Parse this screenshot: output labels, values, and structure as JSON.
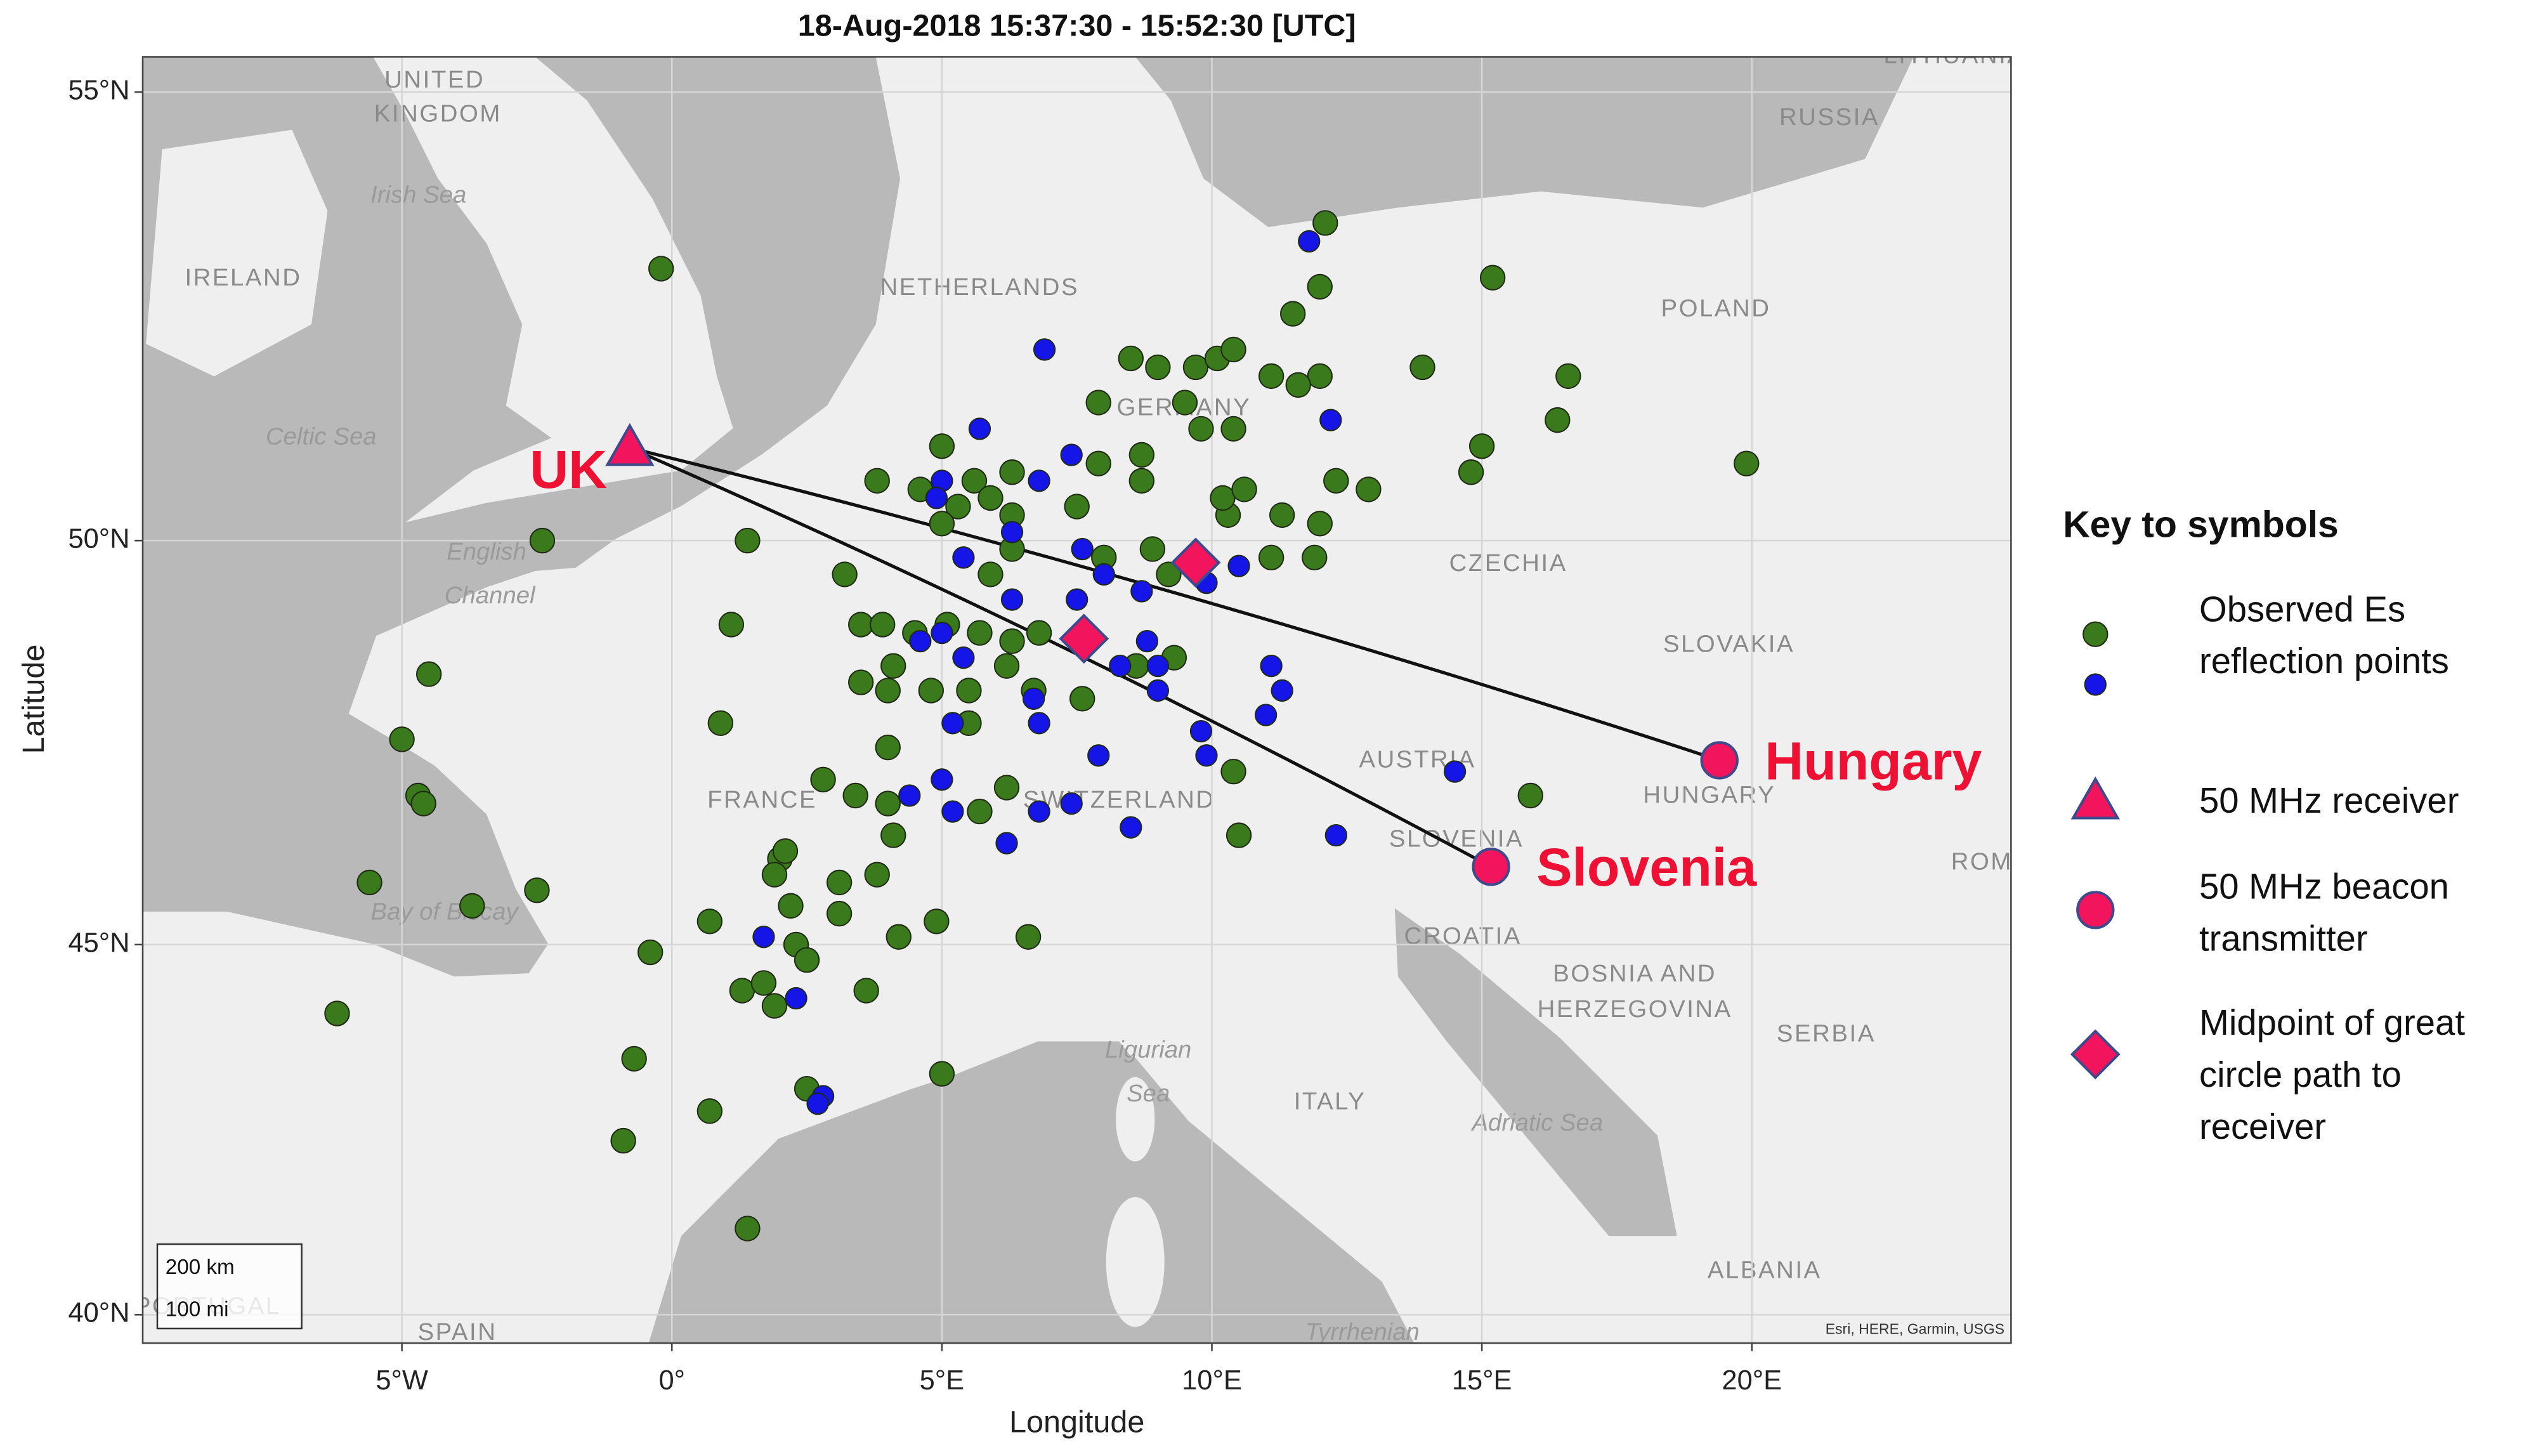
{
  "chart_data": {
    "type": "scatter",
    "title": "18-Aug-2018 15:37:30 - 15:52:30 [UTC]",
    "x_label": "Longitude",
    "y_label": "Latitude",
    "yscale": "mercator",
    "grid": true,
    "xlim": [
      -9.8,
      24.8
    ],
    "ylim": [
      39.6,
      55.37
    ],
    "xticks": [
      {
        "value": -5,
        "label": "5°W"
      },
      {
        "value": 0,
        "label": "0°"
      },
      {
        "value": 5,
        "label": "5°E"
      },
      {
        "value": 10,
        "label": "10°E"
      },
      {
        "value": 15,
        "label": "15°E"
      },
      {
        "value": 20,
        "label": "20°E"
      }
    ],
    "yticks": [
      {
        "value": 40,
        "label": "40°N"
      },
      {
        "value": 45,
        "label": "45°N"
      },
      {
        "value": 50,
        "label": "50°N"
      },
      {
        "value": 55,
        "label": "55°N"
      }
    ],
    "legend_title": "Key to symbols",
    "legend_position": "right",
    "series": [
      {
        "name": "Observed Es reflection points",
        "color": "#3b7a1c",
        "marker": "circle",
        "x": [
          -0.2,
          12.1,
          15.2,
          11.5,
          12.0,
          13.9,
          16.6,
          16.4,
          19.9,
          15.0,
          14.8,
          8.5,
          9.0,
          9.7,
          10.1,
          10.4,
          11.1,
          12.0,
          11.6,
          9.5,
          10.4,
          9.8,
          7.9,
          8.7,
          8.7,
          7.9,
          5.0,
          4.6,
          3.8,
          5.6,
          6.3,
          5.9,
          6.3,
          7.5,
          5.3,
          5.0,
          1.4,
          -2.4,
          3.2,
          5.9,
          6.3,
          8.0,
          8.9,
          9.2,
          10.3,
          10.2,
          10.6,
          11.3,
          12.0,
          12.3,
          12.9,
          11.9,
          11.1,
          1.1,
          3.5,
          3.9,
          4.5,
          5.1,
          5.7,
          6.3,
          6.8,
          4.1,
          3.5,
          4.0,
          4.8,
          5.5,
          6.2,
          6.7,
          7.6,
          5.5,
          9.3,
          8.6,
          0.9,
          -4.5,
          -5.0,
          -4.7,
          -4.6,
          4.0,
          2.8,
          3.4,
          4.0,
          4.1,
          6.2,
          5.7,
          10.4,
          10.5,
          15.9,
          -5.6,
          -3.7,
          -2.5,
          0.7,
          3.1,
          3.8,
          3.1,
          2.0,
          2.1,
          1.9,
          2.2,
          2.3,
          2.5,
          4.2,
          4.9,
          6.6,
          -0.4,
          1.3,
          1.7,
          1.9,
          3.6,
          -6.2,
          -0.7,
          0.7,
          2.5,
          5.0,
          -0.9,
          1.4
        ],
        "values": [
          53.1,
          53.6,
          53.0,
          52.6,
          52.9,
          52.0,
          51.9,
          51.4,
          50.9,
          51.1,
          50.8,
          52.1,
          52.0,
          52.0,
          52.1,
          52.2,
          51.9,
          51.9,
          51.8,
          51.6,
          51.3,
          51.3,
          51.6,
          51.0,
          50.7,
          50.9,
          51.1,
          50.6,
          50.7,
          50.7,
          50.8,
          50.5,
          50.3,
          50.4,
          50.4,
          50.2,
          50.0,
          50.0,
          49.6,
          49.6,
          49.9,
          49.8,
          49.9,
          49.6,
          50.3,
          50.5,
          50.6,
          50.3,
          50.2,
          50.7,
          50.6,
          49.8,
          49.8,
          49.0,
          49.0,
          49.0,
          48.9,
          49.0,
          48.9,
          48.8,
          48.9,
          48.5,
          48.3,
          48.2,
          48.2,
          48.2,
          48.5,
          48.2,
          48.1,
          47.8,
          48.6,
          48.5,
          47.8,
          48.4,
          47.6,
          46.9,
          46.8,
          47.5,
          47.1,
          46.9,
          46.8,
          46.4,
          47.0,
          46.7,
          47.2,
          46.4,
          46.9,
          45.8,
          45.5,
          45.7,
          45.3,
          45.8,
          45.9,
          45.4,
          46.1,
          46.2,
          45.9,
          45.5,
          45.0,
          44.8,
          45.1,
          45.3,
          45.1,
          44.9,
          44.4,
          44.5,
          44.2,
          44.4,
          44.1,
          43.5,
          42.8,
          43.1,
          43.3,
          42.4,
          41.2
        ]
      },
      {
        "color": "#1515e8",
        "marker": "circle",
        "x": [
          11.8,
          6.9,
          5.7,
          7.4,
          12.2,
          5.0,
          4.9,
          6.8,
          6.3,
          5.4,
          7.6,
          8.0,
          7.5,
          8.7,
          10.5,
          9.9,
          5.0,
          4.6,
          5.4,
          6.3,
          6.7,
          6.8,
          5.2,
          8.8,
          9.0,
          9.0,
          8.3,
          11.1,
          11.3,
          11.0,
          9.8,
          9.9,
          7.9,
          5.0,
          5.2,
          4.4,
          7.4,
          6.8,
          6.2,
          8.5,
          12.3,
          14.5,
          1.7,
          2.3,
          2.8,
          2.7
        ],
        "values": [
          53.4,
          52.2,
          51.3,
          51.0,
          51.4,
          50.7,
          50.5,
          50.7,
          50.1,
          49.8,
          49.9,
          49.6,
          49.3,
          49.4,
          49.7,
          49.5,
          48.9,
          48.8,
          48.6,
          49.3,
          48.1,
          47.8,
          47.8,
          48.8,
          48.5,
          48.2,
          48.5,
          48.5,
          48.2,
          47.9,
          47.7,
          47.4,
          47.4,
          47.1,
          46.7,
          46.9,
          46.8,
          46.7,
          46.3,
          46.5,
          46.4,
          47.2,
          45.1,
          44.3,
          43.0,
          42.9
        ]
      },
      {
        "name": "50 MHz receiver",
        "color": "#f2145c",
        "marker": "triangle",
        "x": [
          -0.78
        ],
        "values": [
          51.08
        ],
        "labels": [
          "UK"
        ]
      },
      {
        "name": "50 MHz beacon transmitter",
        "color": "#f2145c",
        "marker": "circle",
        "x": [
          19.4,
          15.17
        ],
        "values": [
          47.34,
          46.0
        ],
        "labels": [
          "Hungary",
          "Slovenia"
        ]
      },
      {
        "name": "Midpoint of great circle path to receiver",
        "color": "#f2145c",
        "marker": "diamond",
        "x": [
          9.7,
          7.63
        ],
        "values": [
          49.74,
          48.83
        ]
      }
    ],
    "map_labels": [
      "UNITED",
      "KINGDOM",
      "Irish Sea",
      "IRELAND",
      "Celtic Sea",
      "NETHERLANDS",
      "GERMANY",
      "POLAND",
      "RUSSIA",
      "English",
      "Channel",
      "CZECHIA",
      "SLOVAKIA",
      "AUSTRIA",
      "HUNGARY",
      "SLOVENIA",
      "CROATIA",
      "BOSNIA AND",
      "HERZEGOVINA",
      "SERBIA",
      "FRANCE",
      "SWITZERLAND",
      "Bay of Biscay",
      "Ligurian",
      "Sea",
      "ITALY",
      "Adriatic Sea",
      "ALBANIA",
      "Tyrrhenian",
      "SPAIN",
      "PORTUGAL",
      "LITHUANIA",
      "ROM"
    ],
    "scale_bar": [
      "200 km",
      "100 mi"
    ],
    "attribution": "Esri, HERE, Garmin, USGS"
  }
}
